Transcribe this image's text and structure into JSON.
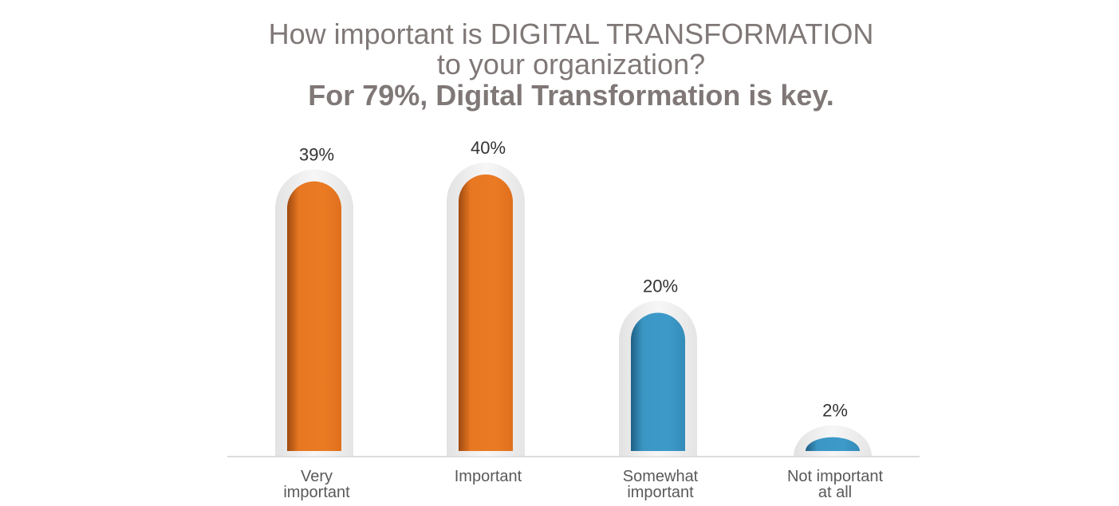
{
  "title": {
    "line1": "How important is DIGITAL TRANSFORMATION",
    "line2": "to your organization?",
    "headline": "For 79%, Digital Transformation is key."
  },
  "colors": {
    "orange": "#e87722",
    "blue": "#3b96c4"
  },
  "chart_data": {
    "type": "bar",
    "title": "How important is DIGITAL TRANSFORMATION to your organization?",
    "subtitle": "For 79%, Digital Transformation is key.",
    "categories": [
      [
        "Very",
        "important"
      ],
      [
        "Important"
      ],
      [
        "Somewhat",
        "important"
      ],
      [
        "Not important",
        "at all"
      ]
    ],
    "values": [
      39,
      40,
      20,
      2
    ],
    "labels": [
      "39%",
      "40%",
      "20%",
      "2%"
    ],
    "bar_colors": [
      "#e87722",
      "#e87722",
      "#3b96c4",
      "#3b96c4"
    ],
    "ylim": [
      0,
      40
    ],
    "xlabel": "",
    "ylabel": "",
    "grid": false,
    "legend": "none"
  }
}
